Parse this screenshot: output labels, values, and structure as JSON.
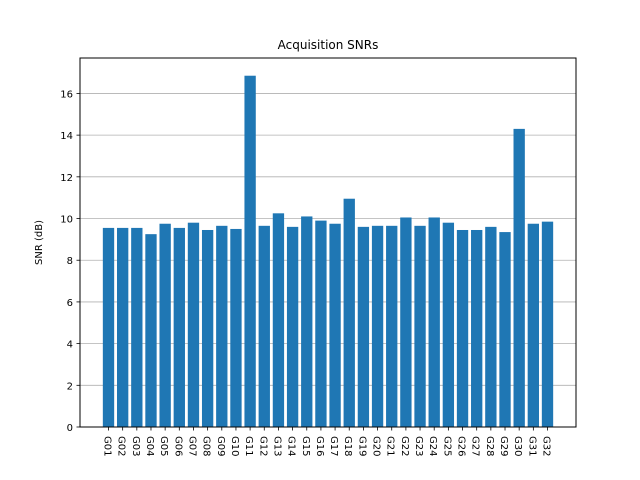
{
  "chart_data": {
    "type": "bar",
    "title": "Acquisition SNRs",
    "xlabel": "",
    "ylabel": "SNR (dB)",
    "ylim": [
      0,
      17.7
    ],
    "yticks": [
      0,
      2,
      4,
      6,
      8,
      10,
      12,
      14,
      16
    ],
    "grid": "y",
    "color": "#1f77b4",
    "categories": [
      "G01",
      "G02",
      "G03",
      "G04",
      "G05",
      "G06",
      "G07",
      "G08",
      "G09",
      "G10",
      "G11",
      "G12",
      "G13",
      "G14",
      "G15",
      "G16",
      "G17",
      "G18",
      "G19",
      "G20",
      "G21",
      "G22",
      "G23",
      "G24",
      "G25",
      "G26",
      "G27",
      "G28",
      "G29",
      "G30",
      "G31",
      "G32"
    ],
    "values": [
      9.55,
      9.55,
      9.55,
      9.25,
      9.75,
      9.55,
      9.8,
      9.45,
      9.65,
      9.5,
      16.85,
      9.65,
      10.25,
      9.6,
      10.1,
      9.9,
      9.75,
      10.95,
      9.6,
      9.65,
      9.65,
      10.05,
      9.65,
      10.05,
      9.8,
      9.45,
      9.45,
      9.6,
      9.35,
      14.3,
      9.75,
      9.85
    ]
  }
}
